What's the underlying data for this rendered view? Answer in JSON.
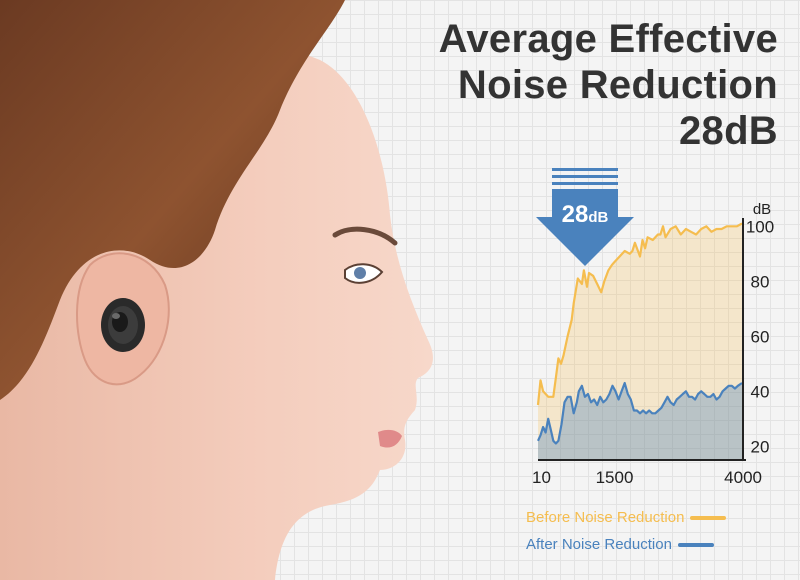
{
  "headline": {
    "line1": "Average Effective",
    "line2": "Noise Reduction",
    "line3": "28dB"
  },
  "badge": {
    "value": "28",
    "unit": "dB"
  },
  "colors": {
    "before": "#f5bd4f",
    "after": "#4a82bd",
    "axis": "#222222",
    "title": "#333333"
  },
  "chart_data": {
    "type": "area",
    "ylabel": "dB",
    "ylim": [
      15,
      103
    ],
    "xlim": [
      0,
      4000
    ],
    "x_tick_labels": [
      "10",
      "1500",
      "4000"
    ],
    "x_tick_positions": [
      10,
      1500,
      4000
    ],
    "y_ticks": [
      20,
      40,
      60,
      80,
      100
    ],
    "legend_position": "bottom",
    "series": [
      {
        "name": "Before Noise Reduction",
        "color": "#f5bd4f",
        "x": [
          0,
          50,
          100,
          200,
          300,
          350,
          400,
          450,
          500,
          580,
          660,
          700,
          780,
          860,
          900,
          960,
          1000,
          1080,
          1160,
          1240,
          1300,
          1380,
          1450,
          1500,
          1600,
          1700,
          1800,
          1850,
          1900,
          2000,
          2050,
          2100,
          2150,
          2250,
          2350,
          2400,
          2450,
          2500,
          2600,
          2700,
          2800,
          2900,
          3000,
          3100,
          3200,
          3300,
          3400,
          3500,
          3600,
          3700,
          3800,
          3900,
          4000
        ],
        "values": [
          35,
          44,
          40,
          38,
          38,
          45,
          52,
          50,
          53,
          60,
          66,
          72,
          81,
          79,
          84,
          78,
          83,
          82,
          79,
          76,
          80,
          84,
          86,
          87,
          89,
          91,
          90,
          91,
          94,
          89,
          95,
          92,
          96,
          95,
          97,
          97,
          100,
          96,
          99,
          100,
          97,
          99,
          98,
          97,
          99,
          100,
          98,
          99,
          99,
          100,
          100,
          100,
          101
        ]
      },
      {
        "name": "After Noise Reduction",
        "color": "#4a82bd",
        "x": [
          0,
          50,
          100,
          150,
          200,
          250,
          300,
          350,
          400,
          460,
          520,
          580,
          640,
          700,
          760,
          800,
          860,
          920,
          980,
          1040,
          1100,
          1160,
          1220,
          1280,
          1340,
          1400,
          1460,
          1520,
          1580,
          1640,
          1700,
          1760,
          1820,
          1880,
          1940,
          2000,
          2060,
          2120,
          2180,
          2240,
          2300,
          2360,
          2420,
          2480,
          2540,
          2600,
          2660,
          2720,
          2780,
          2840,
          2900,
          2960,
          3020,
          3080,
          3140,
          3200,
          3260,
          3320,
          3380,
          3440,
          3500,
          3560,
          3620,
          3680,
          3740,
          3800,
          3860,
          3920,
          4000
        ],
        "values": [
          22,
          24,
          27,
          25,
          30,
          26,
          22,
          21,
          22,
          28,
          36,
          38,
          38,
          32,
          36,
          40,
          42,
          38,
          39,
          36,
          37,
          35,
          38,
          36,
          37,
          39,
          42,
          40,
          37,
          40,
          43,
          39,
          37,
          33,
          33,
          32,
          33,
          32,
          33,
          32,
          32,
          33,
          34,
          36,
          38,
          36,
          35,
          37,
          38,
          39,
          40,
          38,
          38,
          37,
          39,
          40,
          39,
          38,
          38,
          39,
          37,
          38,
          40,
          41,
          42,
          42,
          41,
          42,
          43
        ]
      }
    ]
  },
  "legend": {
    "before_label": "Before Noise Reduction",
    "after_label": "After Noise Reduction"
  }
}
